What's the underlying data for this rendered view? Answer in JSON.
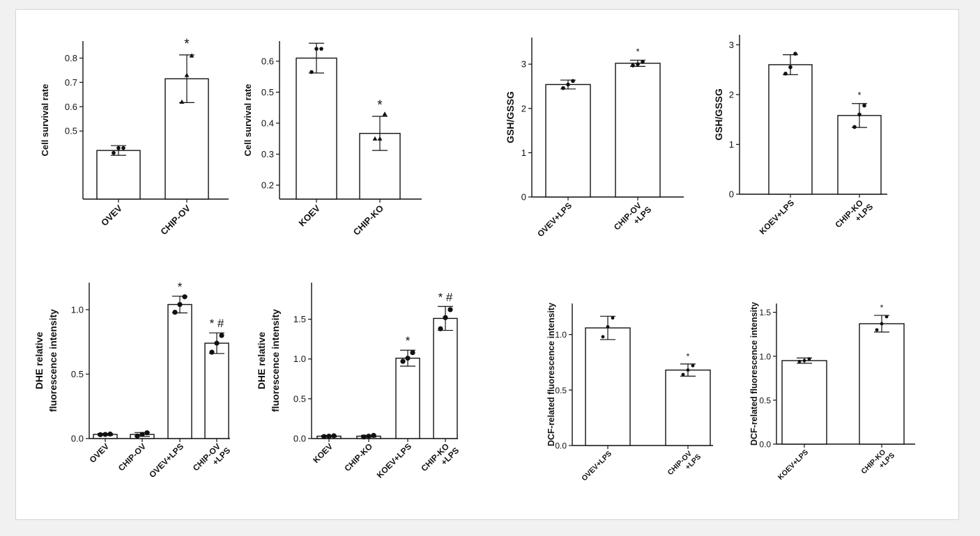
{
  "chart_data": [
    {
      "type": "bar",
      "ylabel": "Cell survival rate",
      "categories": [
        "OVEV",
        "CHIP-OV"
      ],
      "values": [
        0.42,
        0.715
      ],
      "errors": [
        0.02,
        0.098
      ],
      "points": [
        [
          0.41,
          0.43,
          0.43
        ],
        [
          0.62,
          0.73,
          0.81
        ]
      ],
      "markers": [
        "circle",
        "triangle"
      ],
      "significance": [
        "",
        "*"
      ],
      "ylim": [
        0.22,
        0.87
      ],
      "yticks": [
        0.5,
        0.6,
        0.7,
        0.8
      ],
      "ytick_labels": [
        "0.5",
        "0.6",
        "0.7",
        "0.8"
      ]
    },
    {
      "type": "bar",
      "ylabel": "Cell survival rate",
      "categories": [
        "KOEV",
        "CHIP-KO"
      ],
      "values": [
        0.61,
        0.367
      ],
      "errors": [
        0.048,
        0.055
      ],
      "points": [
        [
          0.565,
          0.64,
          0.64
        ],
        [
          0.35,
          0.35,
          0.43
        ]
      ],
      "markers": [
        "circle",
        "triangle"
      ],
      "significance": [
        "",
        "*"
      ],
      "ylim": [
        0.155,
        0.665
      ],
      "yticks": [
        0.2,
        0.3,
        0.4,
        0.5,
        0.6
      ],
      "ytick_labels": [
        "0.2",
        "0.3",
        "0.4",
        "0.5",
        "0.6"
      ]
    },
    {
      "type": "bar",
      "ylabel": "GSH/GSSG",
      "categories": [
        "OVEV+LPS",
        "CHIP-OV\n+LPS"
      ],
      "values": [
        2.54,
        3.02
      ],
      "errors": [
        0.1,
        0.07
      ],
      "points": [
        [
          2.46,
          2.54,
          2.62
        ],
        [
          2.97,
          3.0,
          3.05
        ]
      ],
      "markers": [
        "circle",
        "circle"
      ],
      "significance": [
        "",
        "*"
      ],
      "ylim": [
        0,
        3.6
      ],
      "yticks": [
        0,
        1,
        2,
        3
      ],
      "ytick_labels": [
        "0",
        "1",
        "2",
        "3"
      ]
    },
    {
      "type": "bar",
      "ylabel": "GSH/GSSG",
      "categories": [
        "KOEV+LPS",
        "CHIP-KO\n+LPS"
      ],
      "values": [
        2.6,
        1.58
      ],
      "errors": [
        0.2,
        0.24
      ],
      "points": [
        [
          2.42,
          2.55,
          2.82
        ],
        [
          1.35,
          1.6,
          1.78
        ]
      ],
      "markers": [
        "circle",
        "circle"
      ],
      "significance": [
        "",
        "*"
      ],
      "ylim": [
        0,
        3.2
      ],
      "yticks": [
        0,
        1,
        2,
        3
      ],
      "ytick_labels": [
        "0",
        "1",
        "2",
        "3"
      ]
    },
    {
      "type": "bar",
      "ylabel": "DHE relative\nfluorescence intensity",
      "categories": [
        "OVEV",
        "CHIP-OV",
        "OVEV+LPS",
        "CHIP-OV\n+LPS"
      ],
      "values": [
        0.032,
        0.032,
        1.04,
        0.74
      ],
      "errors": [
        0.008,
        0.015,
        0.065,
        0.08
      ],
      "points": [
        [
          0.03,
          0.032,
          0.035
        ],
        [
          0.02,
          0.032,
          0.045
        ],
        [
          0.98,
          1.04,
          1.1
        ],
        [
          0.67,
          0.74,
          0.8
        ]
      ],
      "markers": [
        "circle",
        "circle",
        "circle",
        "circle"
      ],
      "significance": [
        "",
        "",
        "*",
        "* #"
      ],
      "ylim": [
        0,
        1.21
      ],
      "yticks": [
        0,
        0.5,
        1.0
      ],
      "ytick_labels": [
        "0.0",
        "0.5",
        "1.0"
      ]
    },
    {
      "type": "bar",
      "ylabel": "DHE relative\nfluorescence intensity",
      "categories": [
        "KOEV",
        "CHIP-KO",
        "KOEV+LPS",
        "CHIP-KO\n+LPS"
      ],
      "values": [
        0.03,
        0.03,
        1.01,
        1.51
      ],
      "errors": [
        0.01,
        0.012,
        0.1,
        0.15
      ],
      "points": [
        [
          0.025,
          0.03,
          0.035
        ],
        [
          0.02,
          0.03,
          0.04
        ],
        [
          0.97,
          1.01,
          1.08
        ],
        [
          1.38,
          1.52,
          1.62
        ]
      ],
      "markers": [
        "circle",
        "circle",
        "circle",
        "circle"
      ],
      "significance": [
        "",
        "",
        "*",
        "* #"
      ],
      "ylim": [
        0,
        1.96
      ],
      "yticks": [
        0,
        0.5,
        1.0,
        1.5
      ],
      "ytick_labels": [
        "0.0",
        "0.5",
        "1.0",
        "1.5"
      ]
    },
    {
      "type": "bar",
      "ylabel": "DCF-related fluorescence intensity",
      "categories": [
        "OVEV+LPS",
        "CHIP-OV\n+LPS"
      ],
      "values": [
        1.06,
        0.68
      ],
      "errors": [
        0.105,
        0.055
      ],
      "points": [
        [
          0.98,
          1.07,
          1.15
        ],
        [
          0.64,
          0.68,
          0.72
        ]
      ],
      "markers": [
        "circle",
        "circle"
      ],
      "significance": [
        "",
        "*"
      ],
      "ylim": [
        0,
        1.28
      ],
      "yticks": [
        0,
        0.5,
        1.0
      ],
      "ytick_labels": [
        "0.0",
        "0.5",
        "1.0"
      ]
    },
    {
      "type": "bar",
      "ylabel": "DCF-related fluorescence intensity",
      "categories": [
        "KOEV+LPS",
        "CHIP-KO\n+LPS"
      ],
      "values": [
        0.95,
        1.37
      ],
      "errors": [
        0.03,
        0.095
      ],
      "points": [
        [
          0.94,
          0.95,
          0.97
        ],
        [
          1.3,
          1.37,
          1.45
        ]
      ],
      "markers": [
        "circle",
        "circle"
      ],
      "significance": [
        "",
        "*"
      ],
      "ylim": [
        0,
        1.6
      ],
      "yticks": [
        0,
        0.5,
        1.0,
        1.5
      ],
      "ytick_labels": [
        "0.0",
        "0.5",
        "1.0",
        "1.5"
      ]
    }
  ]
}
